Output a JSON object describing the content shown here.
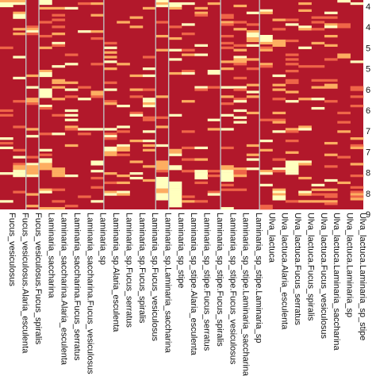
{
  "chart_data": {
    "type": "heatmap",
    "title": "",
    "xlabel": "",
    "ylabel": "",
    "colors": {
      "background": "#b2182b",
      "low": "#b2182b",
      "mid": "#ef6548",
      "orange": "#fdae61",
      "high": "#ffffbf",
      "separator": "#bfbfbf"
    },
    "columns": [
      "Fucus_vesiculosus",
      "Fucus_vesiculosus.Alaria_esculenta",
      "Fucus_vesiculosus.Fucus_spiralis",
      "Laminaria_saccharina",
      "Laminaria_saccharina.Alaria_esculenta",
      "Laminaria_saccharina.Fucus_serratus",
      "Laminaria_saccharina.Fucus_vesiculosus",
      "Laminaria_sp",
      "Laminaria_sp.Alaria_esculenta",
      "Laminaria_sp.Fucus_serratus",
      "Laminaria_sp.Fucus_spiralis",
      "Laminaria_sp.Fucus_vesiculosus",
      "Laminaria_sp.Laminaria_saccharina",
      "Laminaria_sp_stipe",
      "Laminaria_sp_stipe.Alaria_esculenta",
      "Laminaria_sp_stipe.Fucus_serratus",
      "Laminaria_sp_stipe.Fucus_spiralis",
      "Laminaria_sp_stipe.Fucus_vesiculosus",
      "Laminaria_sp_stipe.Laminaria_saccharina",
      "Laminaria_sp_stipe.Laminaria_sp",
      "Ulva_lactuca",
      "Ulva_lactuca.Alaria_esculenta",
      "Ulva_lactuca.Fucus_serratus",
      "Ulva_lactuca.Fucus_spiralis",
      "Ulva_lactuca.Fucus_vesiculosus",
      "Ulva_lactuca.Laminaria_saccharina",
      "Ulva_lactuca.Laminaria_sp",
      "Ulva_lactuca.Laminaria_sp_stipe"
    ],
    "row_labels": [
      "4",
      "4",
      "5",
      "5",
      "6",
      "6",
      "7",
      "7",
      "8",
      "8",
      "9"
    ],
    "group_separators_after_column": [
      1,
      2,
      7,
      11,
      12,
      16,
      19
    ],
    "n_rows": 90,
    "hotspots": [
      {
        "col": 0,
        "row0": 0,
        "row1": 3,
        "level": 3
      },
      {
        "col": 1,
        "row0": 0,
        "row1": 2,
        "level": 3
      },
      {
        "col": 3,
        "row0": 0,
        "row1": 2,
        "level": 3
      },
      {
        "col": 12,
        "row0": 0,
        "row1": 3,
        "level": 3
      },
      {
        "col": 13,
        "row0": 1,
        "row1": 4,
        "level": 3
      },
      {
        "col": 1,
        "row0": 5,
        "row1": 8,
        "level": 3
      },
      {
        "col": 2,
        "row0": 12,
        "row1": 15,
        "level": 2
      },
      {
        "col": 3,
        "row0": 30,
        "row1": 33,
        "level": 3
      },
      {
        "col": 3,
        "row0": 38,
        "row1": 42,
        "level": 3
      },
      {
        "col": 2,
        "row0": 42,
        "row1": 45,
        "level": 2
      },
      {
        "col": 19,
        "row0": 14,
        "row1": 18,
        "level": 3
      },
      {
        "col": 20,
        "row0": 15,
        "row1": 19,
        "level": 3
      },
      {
        "col": 21,
        "row0": 17,
        "row1": 20,
        "level": 2
      },
      {
        "col": 18,
        "row0": 24,
        "row1": 27,
        "level": 3
      },
      {
        "col": 20,
        "row0": 20,
        "row1": 22,
        "level": 2
      },
      {
        "col": 1,
        "row0": 71,
        "row1": 76,
        "level": 3
      },
      {
        "col": 2,
        "row0": 70,
        "row1": 76,
        "level": 3
      },
      {
        "col": 3,
        "row0": 68,
        "row1": 73,
        "level": 3
      },
      {
        "col": 4,
        "row0": 72,
        "row1": 76,
        "level": 2
      },
      {
        "col": 12,
        "row0": 76,
        "row1": 86,
        "level": 3
      },
      {
        "col": 13,
        "row0": 78,
        "row1": 88,
        "level": 3
      },
      {
        "col": 15,
        "row0": 73,
        "row1": 76,
        "level": 3
      },
      {
        "col": 17,
        "row0": 71,
        "row1": 78,
        "level": 3
      },
      {
        "col": 18,
        "row0": 72,
        "row1": 76,
        "level": 2
      },
      {
        "col": 22,
        "row0": 69,
        "row1": 75,
        "level": 3
      },
      {
        "col": 21,
        "row0": 81,
        "row1": 86,
        "level": 3
      },
      {
        "col": 27,
        "row0": 82,
        "row1": 86,
        "level": 2
      },
      {
        "col": 11,
        "row0": 42,
        "row1": 46,
        "level": 3
      },
      {
        "col": 9,
        "row0": 63,
        "row1": 65,
        "level": 2
      }
    ]
  }
}
